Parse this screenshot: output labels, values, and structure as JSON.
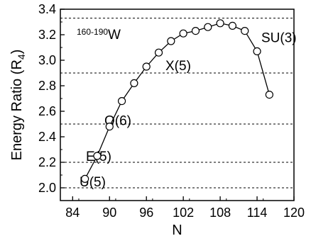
{
  "chart_data": {
    "type": "line",
    "title": "",
    "xlabel": "N",
    "ylabel_main": "Energy Ratio (R",
    "ylabel_sub": "4",
    "ylabel_close": ")",
    "xlim": [
      82,
      120
    ],
    "ylim": [
      1.9,
      3.4
    ],
    "xticks": [
      84,
      90,
      96,
      102,
      108,
      114,
      120
    ],
    "yticks": [
      2.0,
      2.2,
      2.4,
      2.6,
      2.8,
      3.0,
      3.2,
      3.4
    ],
    "series": [
      {
        "x": [
          86,
          88,
          90,
          92,
          94,
          96,
          98,
          100,
          102,
          104,
          106,
          108,
          110,
          112,
          114,
          116
        ],
        "y": [
          2.07,
          2.25,
          2.48,
          2.68,
          2.82,
          2.95,
          3.06,
          3.15,
          3.21,
          3.23,
          3.26,
          3.29,
          3.27,
          3.23,
          3.07,
          2.73
        ]
      }
    ],
    "reference_lines": [
      {
        "label": "U(5)",
        "y": 2.0
      },
      {
        "label": "E(5)",
        "y": 2.2
      },
      {
        "label": "O(6)",
        "y": 2.5
      },
      {
        "label": "X(5)",
        "y": 2.9
      },
      {
        "label": "SU(3)",
        "y": 3.33
      }
    ],
    "annotation": {
      "superscript": "160-190",
      "text": "W"
    },
    "marker_color": "#000000",
    "line_color": "#000000"
  }
}
